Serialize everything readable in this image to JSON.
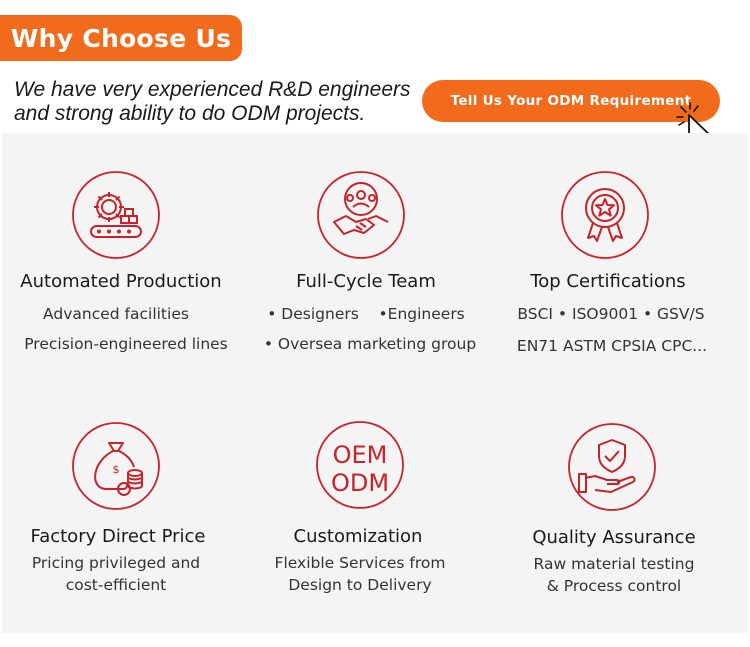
{
  "header": {
    "title": "Why Choose Us"
  },
  "intro": {
    "text": "We have very experienced R&D engineers and strong ability to do ODM projects."
  },
  "cta": {
    "label": "Tell Us Your ODM Requirement"
  },
  "accent_color": "#f26b1d",
  "icon_color": "#c8222a",
  "features": [
    {
      "icon": "automated-production-icon",
      "title": "Automated Production",
      "lines": [
        "Advanced facilities",
        "Precision-engineered lines"
      ]
    },
    {
      "icon": "team-handshake-icon",
      "title": "Full-Cycle Team",
      "lines": [
        "• Designers    •Engineers",
        "• Oversea marketing group"
      ]
    },
    {
      "icon": "certification-badge-icon",
      "title": "Top Certifications",
      "lines": [
        "BSCI • ISO9001 • GSV/S",
        "EN71 ASTM CPSIA CPC..."
      ]
    },
    {
      "icon": "money-bag-icon",
      "title": "Factory Direct Price",
      "lines": [
        "Pricing privileged and",
        "cost-efficient"
      ]
    },
    {
      "icon": "oem-odm-icon",
      "title": "Customization",
      "lines": [
        "Flexible Services from",
        "Design to Delivery"
      ],
      "icon_text": [
        "OEM",
        "ODM"
      ]
    },
    {
      "icon": "quality-shield-hand-icon",
      "title": "Quality Assurance",
      "lines": [
        "Raw material testing",
        "& Process control"
      ]
    }
  ]
}
